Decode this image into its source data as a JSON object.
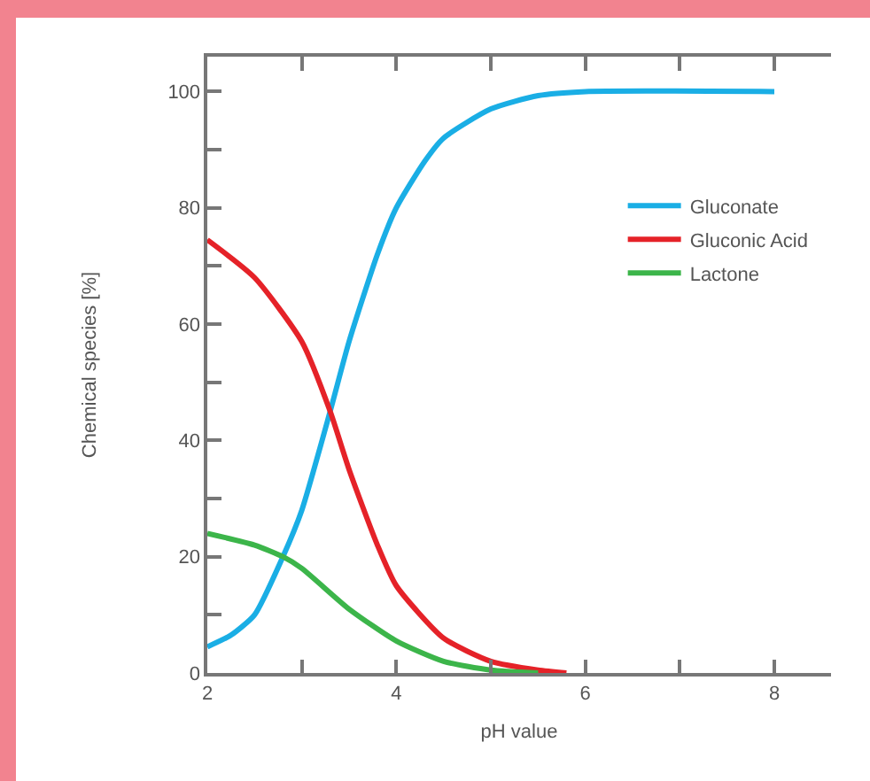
{
  "chart_data": {
    "type": "line",
    "xlabel": "pH value",
    "ylabel": "Chemical species [%]",
    "xlim": [
      2,
      8.6
    ],
    "ylim": [
      0,
      106
    ],
    "xticks": [
      2,
      {
        "value": 3,
        "label": null
      },
      4,
      {
        "value": 5,
        "label": null
      },
      6,
      {
        "value": 7,
        "label": null
      },
      8
    ],
    "yticks": [
      0,
      {
        "value": 10,
        "label": null
      },
      20,
      {
        "value": 30,
        "label": null
      },
      40,
      {
        "value": 50,
        "label": null
      },
      60,
      {
        "value": 70,
        "label": null
      },
      80,
      {
        "value": 90,
        "label": null
      },
      100
    ],
    "grid": false,
    "legend": "top right",
    "marker": "none",
    "line_style": "solid",
    "series": [
      {
        "name": "Gluconate",
        "color": "#1aaee5",
        "x": [
          2,
          2.25,
          2.5,
          2.8,
          3,
          3.3,
          3.5,
          3.8,
          4,
          4.3,
          4.5,
          5,
          5.5,
          6,
          8
        ],
        "values": [
          4.5,
          6.5,
          10,
          20,
          28,
          45,
          57,
          72,
          80,
          88,
          92,
          97,
          99.3,
          100,
          100
        ]
      },
      {
        "name": "Gluconic Acid",
        "color": "#e52228",
        "x": [
          2,
          2.5,
          3,
          3.3,
          3.5,
          3.8,
          4,
          4.5,
          5,
          5.5,
          5.8
        ],
        "values": [
          74.5,
          68,
          57,
          45,
          35,
          22,
          15,
          6,
          2,
          0.5,
          0
        ]
      },
      {
        "name": "Lactone",
        "color": "#3cb54a",
        "x": [
          2,
          2.5,
          2.8,
          3,
          3.5,
          4,
          4.5,
          5,
          5.5
        ],
        "values": [
          24,
          22,
          20,
          18,
          11,
          5.5,
          2,
          0.5,
          0
        ]
      }
    ]
  }
}
